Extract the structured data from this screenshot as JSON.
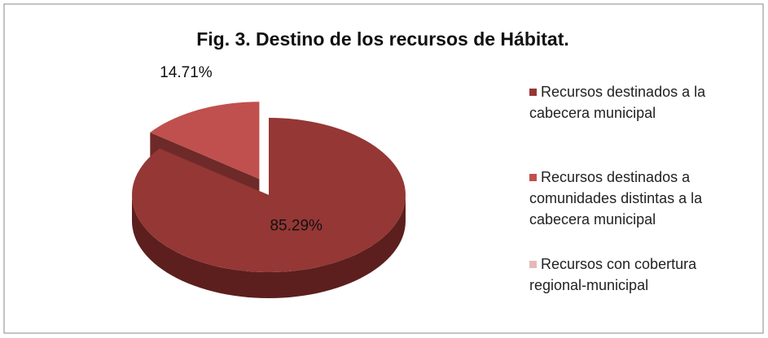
{
  "chart_data": {
    "type": "pie",
    "title": "Fig. 3. Destino de los recursos de Hábitat.",
    "categories": [
      "Recursos destinados a la cabecera municipal",
      "Recursos destinados a comunidades distintas a la cabecera municipal",
      "Recursos con cobertura regional-municipal"
    ],
    "values": [
      85.29,
      14.71,
      0
    ],
    "value_labels": [
      "85.29%",
      "14.71%",
      null
    ],
    "colors": [
      "#953735",
      "#c0504d",
      "#e6b9b8"
    ],
    "side_colors": [
      "#5c1f1e",
      "#6e2a28",
      "#9a7a79"
    ]
  }
}
